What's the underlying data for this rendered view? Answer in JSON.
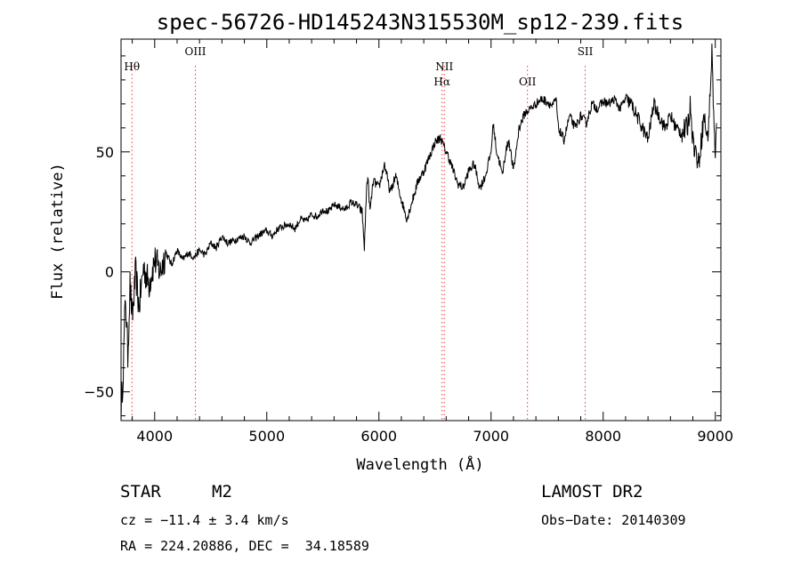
{
  "chart_data": {
    "type": "line",
    "title": "spec-56726-HD145243N315530M_sp12-239.fits",
    "xlabel": "Wavelength (Å)",
    "ylabel": "Flux (relative)",
    "xlim": [
      3700,
      9050
    ],
    "ylim": [
      -62,
      97
    ],
    "xticks": [
      4000,
      5000,
      6000,
      7000,
      8000,
      9000
    ],
    "yticks": [
      -50,
      0,
      50
    ],
    "grid": false,
    "series": [
      {
        "x": [
          3700,
          3720,
          3740,
          3760,
          3780,
          3800,
          3830,
          3860,
          3900,
          3950,
          4000,
          4050,
          4100,
          4150,
          4200,
          4250,
          4300,
          4350,
          4400,
          4450,
          4500,
          4550,
          4600,
          4650,
          4700,
          4750,
          4800,
          4850,
          4900,
          4950,
          5000,
          5050,
          5100,
          5150,
          5200,
          5250,
          5300,
          5350,
          5400,
          5450,
          5500,
          5550,
          5600,
          5650,
          5700,
          5750,
          5800,
          5850,
          5870,
          5890,
          5900,
          5920,
          5950,
          6000,
          6050,
          6100,
          6150,
          6200,
          6250,
          6300,
          6350,
          6400,
          6450,
          6500,
          6550,
          6580,
          6620,
          6650,
          6700,
          6750,
          6800,
          6850,
          6900,
          6950,
          7000,
          7020,
          7050,
          7080,
          7100,
          7130,
          7160,
          7200,
          7250,
          7300,
          7350,
          7400,
          7450,
          7500,
          7550,
          7580,
          7600,
          7650,
          7700,
          7750,
          7800,
          7850,
          7900,
          7950,
          8000,
          8050,
          8100,
          8150,
          8200,
          8250,
          8300,
          8350,
          8400,
          8450,
          8500,
          8550,
          8600,
          8650,
          8700,
          8750,
          8780,
          8800,
          8850,
          8900,
          8930,
          8950,
          8970,
          8990,
          9000,
          9010
        ],
        "y": [
          -60,
          -40,
          -10,
          -35,
          -5,
          -20,
          0,
          -15,
          2,
          -5,
          5,
          0,
          8,
          3,
          9,
          5,
          8,
          6,
          9,
          7,
          12,
          10,
          15,
          12,
          13,
          14,
          15,
          12,
          14,
          16,
          17,
          15,
          18,
          19,
          20,
          18,
          22,
          21,
          24,
          23,
          26,
          25,
          28,
          27,
          26,
          29,
          28,
          25,
          10,
          35,
          40,
          25,
          38,
          35,
          45,
          33,
          40,
          30,
          22,
          30,
          38,
          42,
          48,
          54,
          56,
          52,
          48,
          44,
          37,
          35,
          42,
          45,
          35,
          40,
          50,
          62,
          50,
          45,
          40,
          50,
          55,
          42,
          60,
          66,
          68,
          70,
          72,
          71,
          69,
          72,
          60,
          55,
          65,
          60,
          65,
          62,
          70,
          68,
          71,
          70,
          72,
          68,
          72,
          70,
          65,
          60,
          55,
          70,
          65,
          60,
          65,
          60,
          58,
          60,
          70,
          55,
          45,
          65,
          55,
          70,
          92,
          60,
          45,
          62
        ]
      }
    ],
    "lines": [
      {
        "label": "Hθ",
        "x": 3797,
        "row": 1
      },
      {
        "label": "OIII",
        "x": 4363,
        "row": 0
      },
      {
        "label": "NII",
        "x": 6583,
        "row": 1
      },
      {
        "label": "Hα",
        "x": 6563,
        "row": 2
      },
      {
        "label": "OII",
        "x": 7325,
        "row": 2
      },
      {
        "label": "SII",
        "x": 7840,
        "row": 0
      }
    ]
  },
  "info": {
    "object_class": "STAR",
    "subclass": "M2",
    "survey": "LAMOST DR2",
    "cz": "cz = −11.4 ± 3.4 km/s",
    "obs_date": "Obs−Date: 20140309",
    "coords": "RA = 224.20886, DEC =  34.18589"
  },
  "colors": {
    "spectrum": "#000000",
    "line_markers": "#e23c3c",
    "axes": "#000000"
  }
}
